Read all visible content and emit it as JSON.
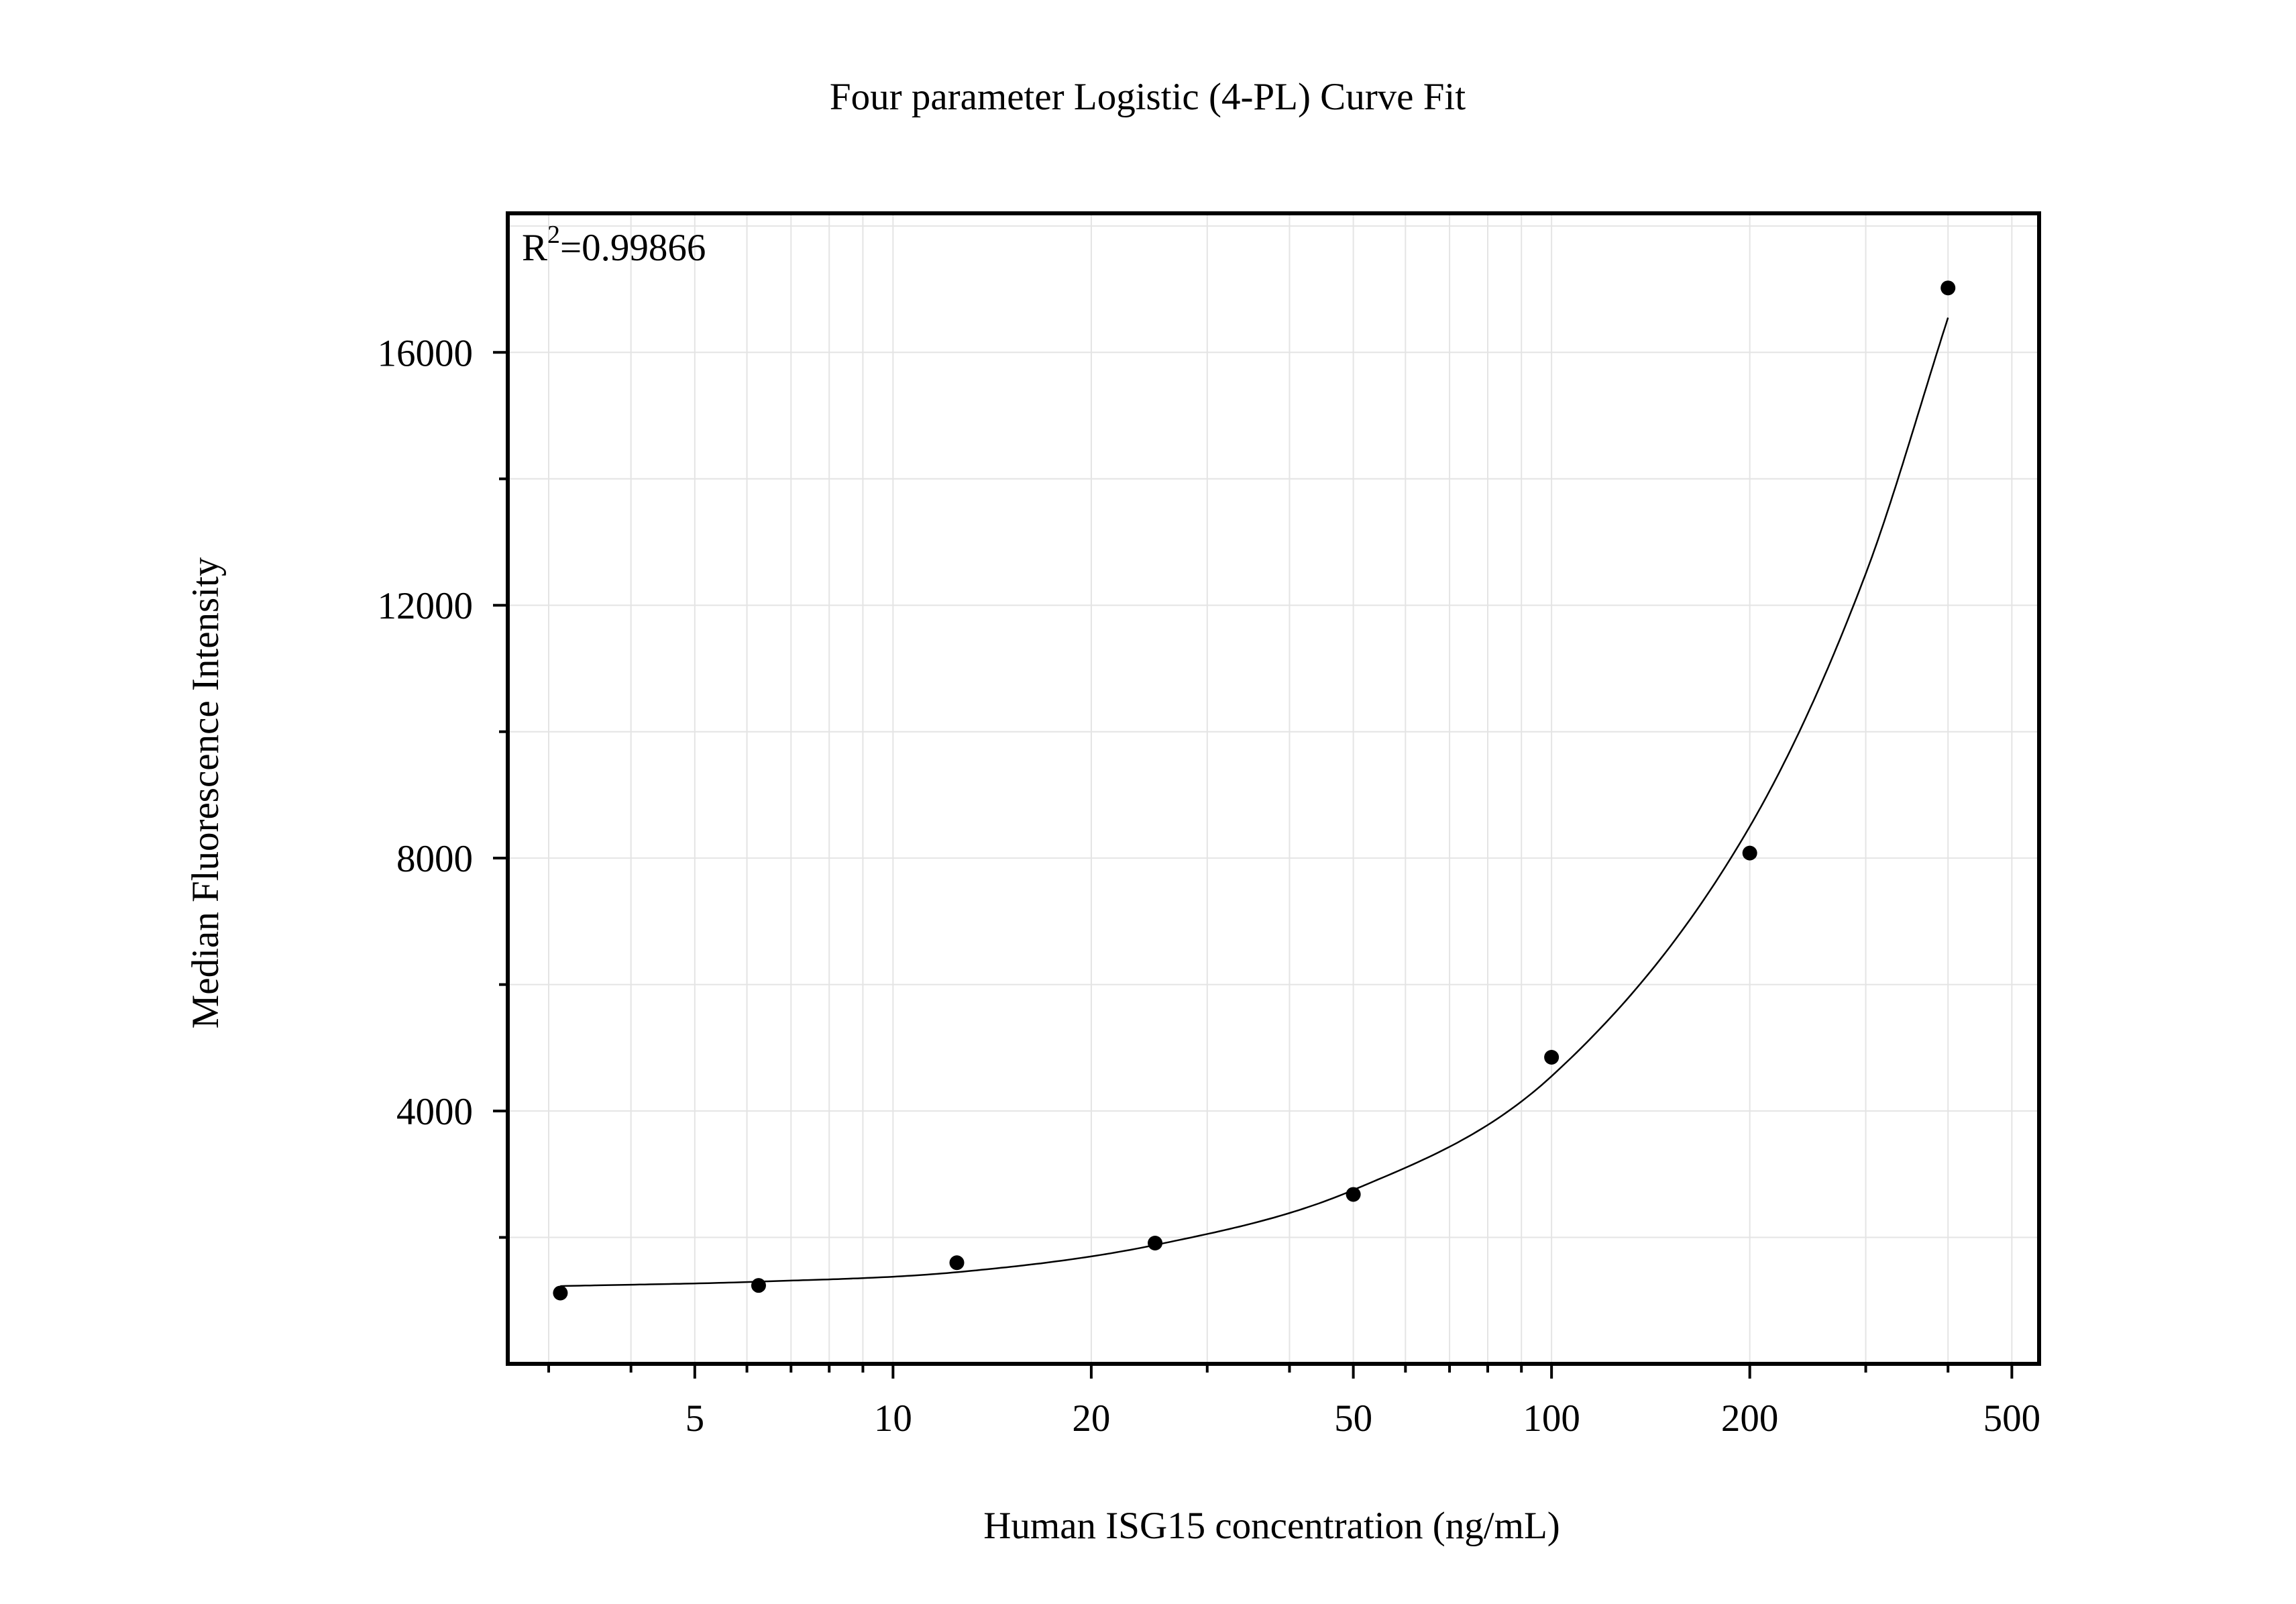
{
  "chart_data": {
    "type": "scatter",
    "title": "Four parameter Logistic (4-PL) Curve Fit",
    "xlabel": "Human ISG15 concentration (ng/mL)",
    "ylabel": "Median Fluorescence Intensity",
    "x_scale": "log",
    "xlim": [
      2.6,
      550
    ],
    "ylim": [
      0,
      18200
    ],
    "x_ticks": [
      5,
      10,
      20,
      50,
      100,
      200,
      500
    ],
    "x_tick_labels": [
      "5",
      "10",
      "20",
      "50",
      "100",
      "200",
      "500"
    ],
    "y_ticks": [
      4000,
      8000,
      12000,
      16000
    ],
    "y_tick_labels": [
      "4000",
      "8000",
      "12000",
      "16000"
    ],
    "y_minor_ticks": [
      2000,
      6000,
      10000,
      14000
    ],
    "grid": true,
    "annotation": {
      "prefix": "R",
      "superscript": "2",
      "value": "=0.99866"
    },
    "points": [
      {
        "x": 3.125,
        "y": 1120
      },
      {
        "x": 6.25,
        "y": 1240
      },
      {
        "x": 12.5,
        "y": 1600
      },
      {
        "x": 25,
        "y": 1910
      },
      {
        "x": 50,
        "y": 2680
      },
      {
        "x": 100,
        "y": 4850
      },
      {
        "x": 200,
        "y": 8080
      },
      {
        "x": 400,
        "y": 17020
      }
    ],
    "fit_curve": {
      "model": "4-PL",
      "x_range": [
        3.125,
        400
      ],
      "samples": [
        {
          "x": 3.125,
          "y": 1230
        },
        {
          "x": 6.25,
          "y": 1300
        },
        {
          "x": 12.5,
          "y": 1450
        },
        {
          "x": 25,
          "y": 1880
        },
        {
          "x": 50,
          "y": 2750
        },
        {
          "x": 100,
          "y": 4550
        },
        {
          "x": 200,
          "y": 8500
        },
        {
          "x": 300,
          "y": 12500
        },
        {
          "x": 400,
          "y": 16550
        }
      ]
    }
  },
  "colors": {
    "axis": "#000000",
    "grid": "#e4e4e4",
    "marker": "#000000",
    "curve": "#000000",
    "background": "#ffffff"
  }
}
